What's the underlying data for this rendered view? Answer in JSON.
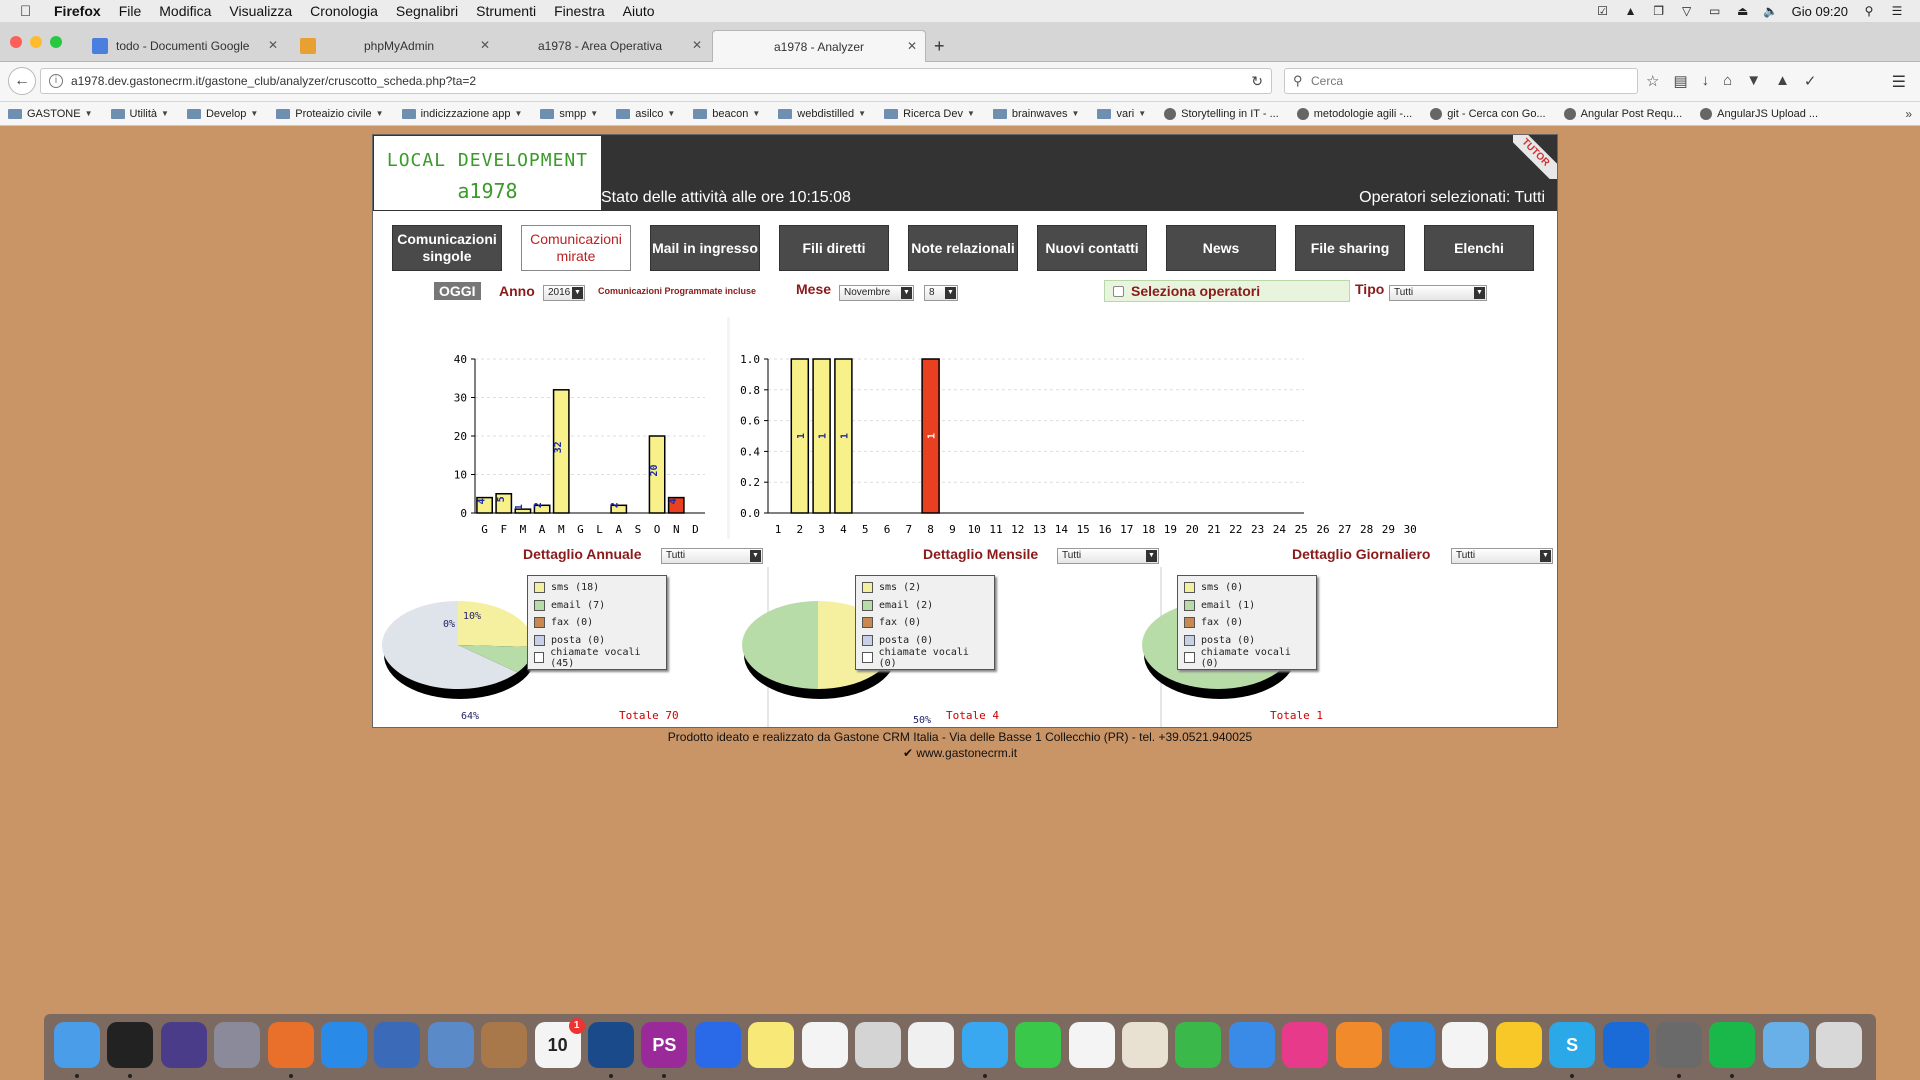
{
  "menubar": {
    "items": [
      "Firefox",
      "File",
      "Modifica",
      "Visualizza",
      "Cronologia",
      "Segnalibri",
      "Strumenti",
      "Finestra",
      "Aiuto"
    ],
    "clock": "Gio 09:20"
  },
  "tabs": [
    {
      "title": "todo - Documenti Google",
      "favicon_color": "#4a7fe0",
      "active": false
    },
    {
      "title": "phpMyAdmin",
      "favicon_color": "#e8a030",
      "active": false
    },
    {
      "title": "a1978 - Area Operativa",
      "favicon_color": "#ffffff",
      "active": false
    },
    {
      "title": "a1978 - Analyzer",
      "favicon_color": "#ffffff",
      "active": true
    }
  ],
  "nav": {
    "url": "a1978.dev.gastonecrm.it/gastone_club/analyzer/cruscotto_scheda.php?ta=2",
    "search_placeholder": "Cerca"
  },
  "bookmarks": [
    {
      "label": "GASTONE",
      "type": "folder"
    },
    {
      "label": "Utilità",
      "type": "folder"
    },
    {
      "label": "Develop",
      "type": "folder"
    },
    {
      "label": "Proteaizio civile",
      "type": "folder"
    },
    {
      "label": "indicizzazione app",
      "type": "folder"
    },
    {
      "label": "smpp",
      "type": "folder"
    },
    {
      "label": "asilco",
      "type": "folder"
    },
    {
      "label": "beacon",
      "type": "folder"
    },
    {
      "label": "webdistilled",
      "type": "folder"
    },
    {
      "label": "Ricerca Dev",
      "type": "folder"
    },
    {
      "label": "brainwaves",
      "type": "folder"
    },
    {
      "label": "vari",
      "type": "folder"
    },
    {
      "label": "Storytelling in IT - ...",
      "type": "link"
    },
    {
      "label": "metodologie agili -...",
      "type": "link"
    },
    {
      "label": "git - Cerca con Go...",
      "type": "link"
    },
    {
      "label": "Angular Post Requ...",
      "type": "link"
    },
    {
      "label": "AngularJS Upload ...",
      "type": "link"
    }
  ],
  "app": {
    "logo_line1": "LOCAL DEVELOPMENT",
    "logo_line2": "a1978",
    "stato": "Stato delle attività alle ore 10:15:08",
    "operatori": "Operatori selezionati: Tutti",
    "tutor": "TUTOR",
    "buttons": [
      {
        "label": "Comunicazioni singole",
        "active": false
      },
      {
        "label": "Comunicazioni mirate",
        "active": true
      },
      {
        "label": "Mail in ingresso",
        "active": false
      },
      {
        "label": "Fili diretti",
        "active": false
      },
      {
        "label": "Note relazionali",
        "active": false
      },
      {
        "label": "Nuovi contatti",
        "active": false
      },
      {
        "label": "News",
        "active": false
      },
      {
        "label": "File sharing",
        "active": false
      },
      {
        "label": "Elenchi",
        "active": false
      }
    ],
    "filters": {
      "oggi": "OGGI",
      "anno_label": "Anno",
      "anno_value": "2016",
      "incluse": "Comunicazioni Programmate incluse",
      "mese_label": "Mese",
      "mese_value": "Novembre",
      "giorno_value": "8",
      "seleziona_operatori": "Seleziona operatori",
      "tipo_label": "Tipo",
      "tipo_value": "Tutti"
    },
    "detail_sections": [
      {
        "title": "Dettaglio Annuale",
        "select": "Tutti",
        "totale": "Totale 70"
      },
      {
        "title": "Dettaglio Mensile",
        "select": "Tutti",
        "totale": "Totale 4"
      },
      {
        "title": "Dettaglio Giornaliero",
        "select": "Tutti",
        "totale": "Totale 1"
      }
    ],
    "legend_colors": [
      "#f5f0a0",
      "#b8dca8",
      "#c88850",
      "#c8d0e8",
      "#ffffff"
    ]
  },
  "chart_data": [
    {
      "type": "bar",
      "categories": [
        "G",
        "F",
        "M",
        "A",
        "M",
        "G",
        "L",
        "A",
        "S",
        "O",
        "N",
        "D"
      ],
      "values": [
        4,
        5,
        1,
        2,
        32,
        0,
        0,
        2,
        0,
        20,
        4,
        0
      ],
      "bar_labels": [
        "4",
        "5",
        "1",
        "2",
        "32",
        "",
        "",
        "2",
        "",
        "20",
        "4",
        ""
      ],
      "highlight_index": 10,
      "ylim": [
        0,
        40
      ],
      "yticks": [
        0,
        10,
        20,
        30,
        40
      ],
      "grid": true,
      "colors": {
        "bar": "#f8f088",
        "highlight": "#e84020"
      }
    },
    {
      "type": "bar",
      "categories": [
        "1",
        "2",
        "3",
        "4",
        "5",
        "6",
        "7",
        "8",
        "9",
        "10",
        "11",
        "12",
        "13",
        "14",
        "15",
        "16",
        "17",
        "18",
        "19",
        "20",
        "21",
        "22",
        "23",
        "24",
        "25",
        "26",
        "27",
        "28",
        "29",
        "30"
      ],
      "values": [
        0,
        1,
        1,
        1,
        0,
        0,
        0,
        1,
        0,
        0,
        0,
        0,
        0,
        0,
        0,
        0,
        0,
        0,
        0,
        0,
        0,
        0,
        0,
        0,
        0,
        0,
        0,
        0,
        0,
        0
      ],
      "highlight_index": 7,
      "ylim": [
        0,
        1
      ],
      "yticks": [
        "0.0",
        "0.2",
        "0.4",
        "0.6",
        "0.8",
        "1.0"
      ],
      "grid": true,
      "colors": {
        "bar": "#f8f088",
        "highlight": "#e84020"
      }
    },
    {
      "type": "pie",
      "labels": [
        "sms (18)",
        "email (7)",
        "fax (0)",
        "posta (0)",
        "chiamate vocali (45)"
      ],
      "values": [
        18,
        7,
        0,
        0,
        45
      ],
      "pct_labels": [
        "10%",
        "0%",
        "64%"
      ]
    },
    {
      "type": "pie",
      "labels": [
        "sms (2)",
        "email (2)",
        "fax (0)",
        "posta (0)",
        "chiamate vocali (0)"
      ],
      "values": [
        2,
        2,
        0,
        0,
        0
      ],
      "pct_labels": [
        "50%",
        "50%"
      ]
    },
    {
      "type": "pie",
      "labels": [
        "sms (0)",
        "email (1)",
        "fax (0)",
        "posta (0)",
        "chiamate vocali (0)"
      ],
      "values": [
        0,
        1,
        0,
        0,
        0
      ],
      "pct_labels": [
        "100%"
      ]
    }
  ],
  "footer": {
    "line1": "Prodotto ideato e realizzato da Gastone CRM Italia - Via delle Basse 1 Collecchio (PR) - tel. +39.0521.940025",
    "line2": "www.gastonecrm.it"
  },
  "dock": [
    {
      "name": "finder-icon",
      "color": "#4a9de8"
    },
    {
      "name": "terminal-icon",
      "color": "#222222"
    },
    {
      "name": "siri-icon",
      "color": "#4b3c8a"
    },
    {
      "name": "launchpad-icon",
      "color": "#8a8a9a"
    },
    {
      "name": "firefox-icon",
      "color": "#e8702a"
    },
    {
      "name": "safari-icon",
      "color": "#2a8ae8"
    },
    {
      "name": "thunderbird-icon",
      "color": "#3a6ab8"
    },
    {
      "name": "preview-icon",
      "color": "#5a8ac8"
    },
    {
      "name": "contacts-icon",
      "color": "#a8784a"
    },
    {
      "name": "calendar-icon",
      "color": "#f4f4f4",
      "text": "10",
      "badge": "1"
    },
    {
      "name": "sourcetree-icon",
      "color": "#1a4a8a"
    },
    {
      "name": "phpstorm-icon",
      "color": "#9a2a9a",
      "text": "PS"
    },
    {
      "name": "screen-sharing-icon",
      "color": "#2a6ae8"
    },
    {
      "name": "notes-icon",
      "color": "#f8e878"
    },
    {
      "name": "reminders-icon",
      "color": "#f4f4f4"
    },
    {
      "name": "image-capture-icon",
      "color": "#d4d4d4"
    },
    {
      "name": "photos-icon",
      "color": "#f0f0f0"
    },
    {
      "name": "messages-icon",
      "color": "#3aa8f0"
    },
    {
      "name": "facetime-icon",
      "color": "#3ac84a"
    },
    {
      "name": "textedit-icon",
      "color": "#f4f4f4"
    },
    {
      "name": "script-editor-icon",
      "color": "#e8e0d0"
    },
    {
      "name": "numbers-icon",
      "color": "#3ab84a"
    },
    {
      "name": "keynote-icon",
      "color": "#3a8ae8"
    },
    {
      "name": "itunes-icon",
      "color": "#e83a8a"
    },
    {
      "name": "ibooks-icon",
      "color": "#f08a2a"
    },
    {
      "name": "app-store-icon",
      "color": "#2a8ae8"
    },
    {
      "name": "document-icon",
      "color": "#f4f4f4"
    },
    {
      "name": "cyberduck-icon",
      "color": "#f8c828"
    },
    {
      "name": "skype-icon",
      "color": "#2aa8e8",
      "text": "S"
    },
    {
      "name": "teamviewer-icon",
      "color": "#1a6ad8"
    },
    {
      "name": "system-preferences-icon",
      "color": "#6a6a6a"
    },
    {
      "name": "spotify-icon",
      "color": "#1ab84a"
    },
    {
      "name": "downloads-folder-icon",
      "color": "#6ab0e8"
    },
    {
      "name": "trash-icon",
      "color": "#d8d8d8"
    }
  ]
}
